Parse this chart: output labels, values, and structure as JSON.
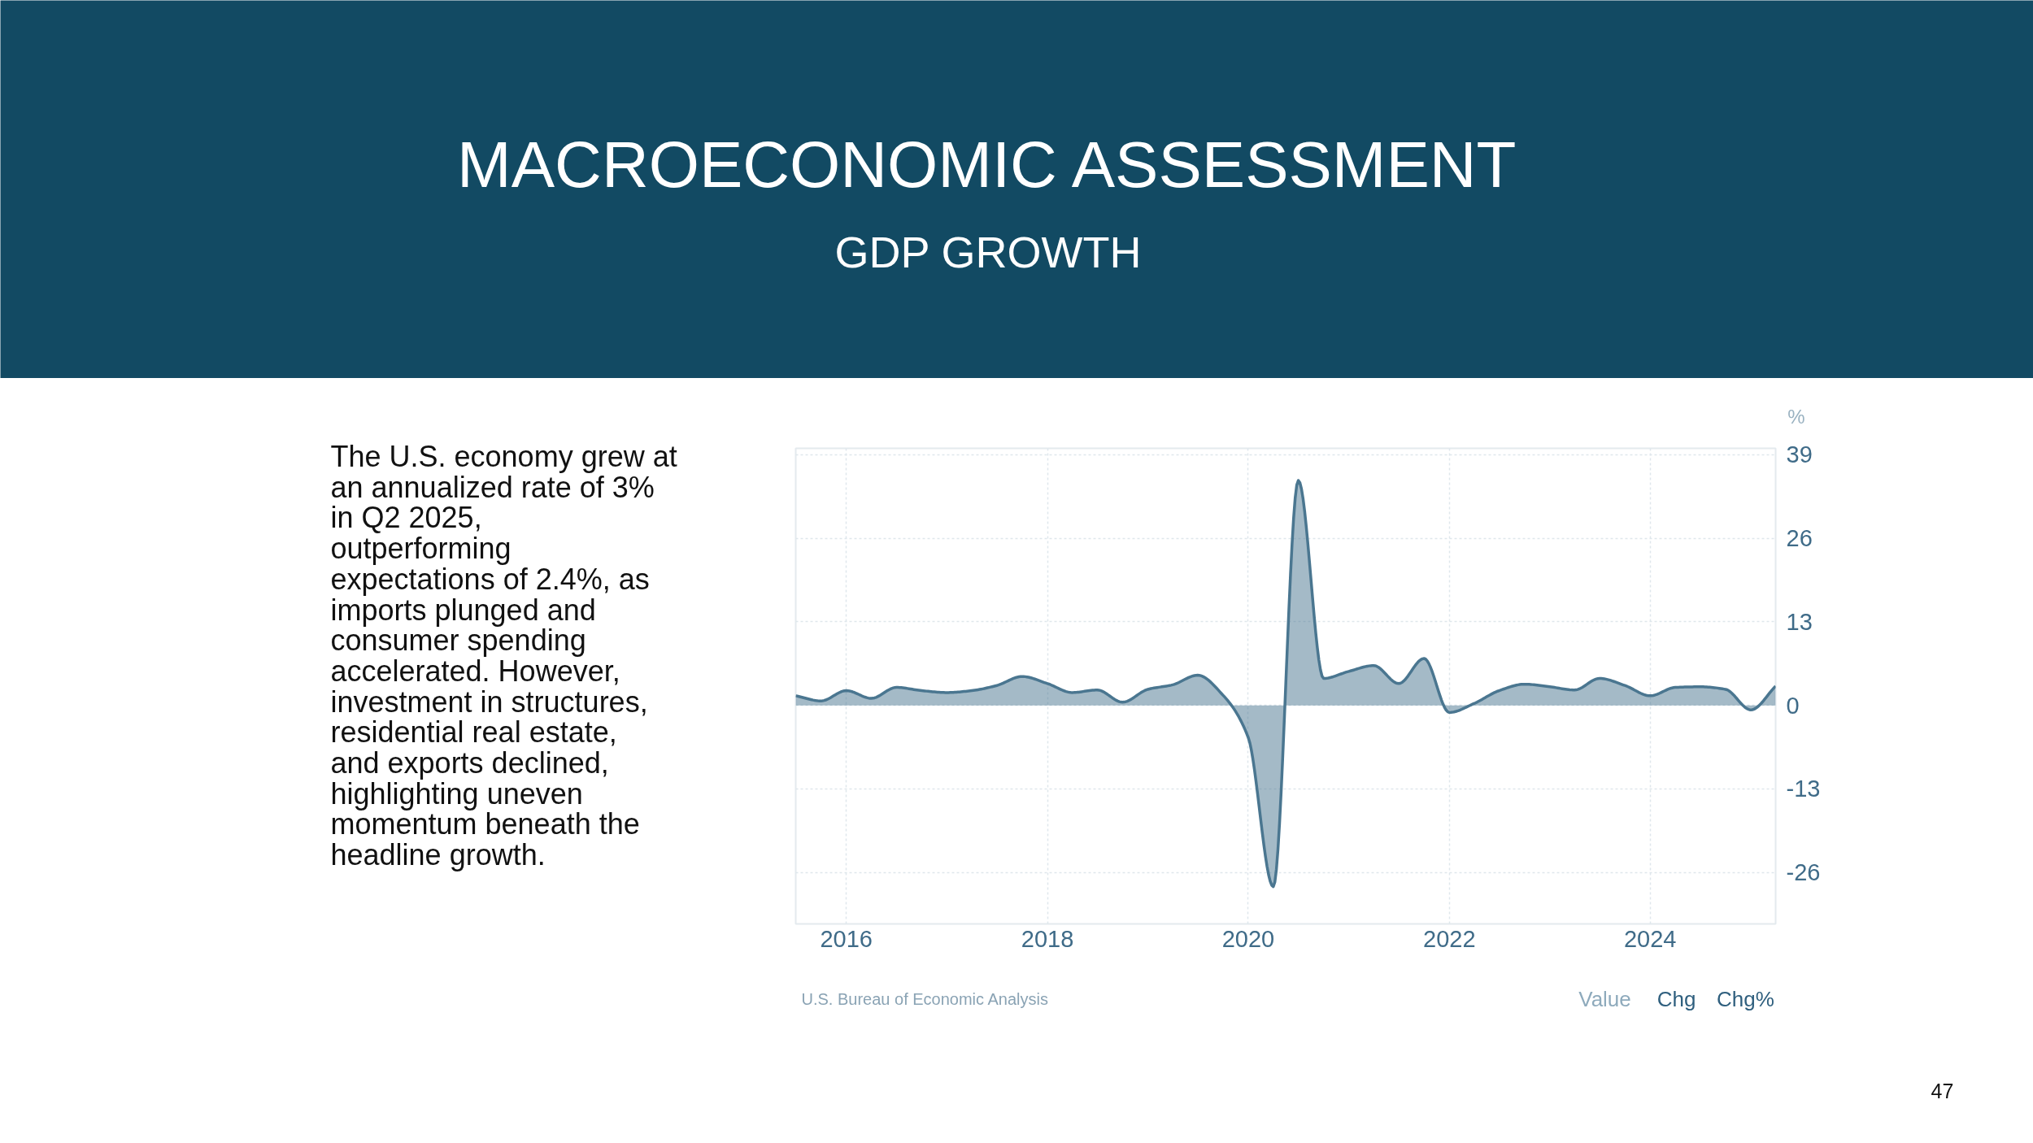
{
  "chart_data": {
    "type": "area",
    "title": "MACROECONOMIC ASSESSMENT",
    "subtitle": "GDP GROWTH",
    "ylabel": "%",
    "x": [
      "2015-07",
      "2015-10",
      "2016-01",
      "2016-04",
      "2016-07",
      "2016-10",
      "2017-01",
      "2017-04",
      "2017-07",
      "2017-10",
      "2018-01",
      "2018-04",
      "2018-07",
      "2018-10",
      "2019-01",
      "2019-04",
      "2019-07",
      "2019-10",
      "2020-01",
      "2020-04",
      "2020-07",
      "2020-10",
      "2021-01",
      "2021-04",
      "2021-07",
      "2021-10",
      "2022-01",
      "2022-04",
      "2022-07",
      "2022-10",
      "2023-01",
      "2023-04",
      "2023-07",
      "2023-10",
      "2024-01",
      "2024-04",
      "2024-07",
      "2024-10",
      "2025-01",
      "2025-04"
    ],
    "series": [
      {
        "color": "#4a7690",
        "values": [
          1.5,
          0.7,
          2.3,
          1.1,
          2.8,
          2.3,
          2.0,
          2.3,
          3.1,
          4.5,
          3.4,
          2.0,
          2.4,
          0.5,
          2.5,
          3.2,
          4.7,
          1.6,
          -5.0,
          -28.2,
          35.0,
          4.2,
          5.3,
          6.2,
          3.4,
          7.3,
          -1.1,
          0.3,
          2.3,
          3.3,
          2.9,
          2.4,
          4.2,
          3.1,
          1.5,
          2.8,
          2.9,
          2.5,
          -0.7,
          3.0
        ]
      }
    ],
    "xlim": [
      "2015-07",
      "2025-04"
    ],
    "xticks": [
      "2016",
      "2018",
      "2020",
      "2022",
      "2024"
    ],
    "ylim": [
      -34,
      40
    ],
    "yticks": [
      -26,
      -13,
      0,
      13,
      26,
      39
    ],
    "grid": true,
    "annotations": [
      "The U.S. economy grew at\nan annualized rate of 3%\nin Q2 2025,\noutperforming\nexpectations of 2.4%, as\nimports plunged and\nconsumer spending\naccelerated. However,\ninvestment in structures,\nresidential real estate,\nand exports declined,\nhighlighting uneven\nmomentum beneath the\nheadline growth.",
      "U.S. Bureau of Economic Analysis",
      "Value",
      "Chg",
      "Chg%",
      "47"
    ]
  }
}
